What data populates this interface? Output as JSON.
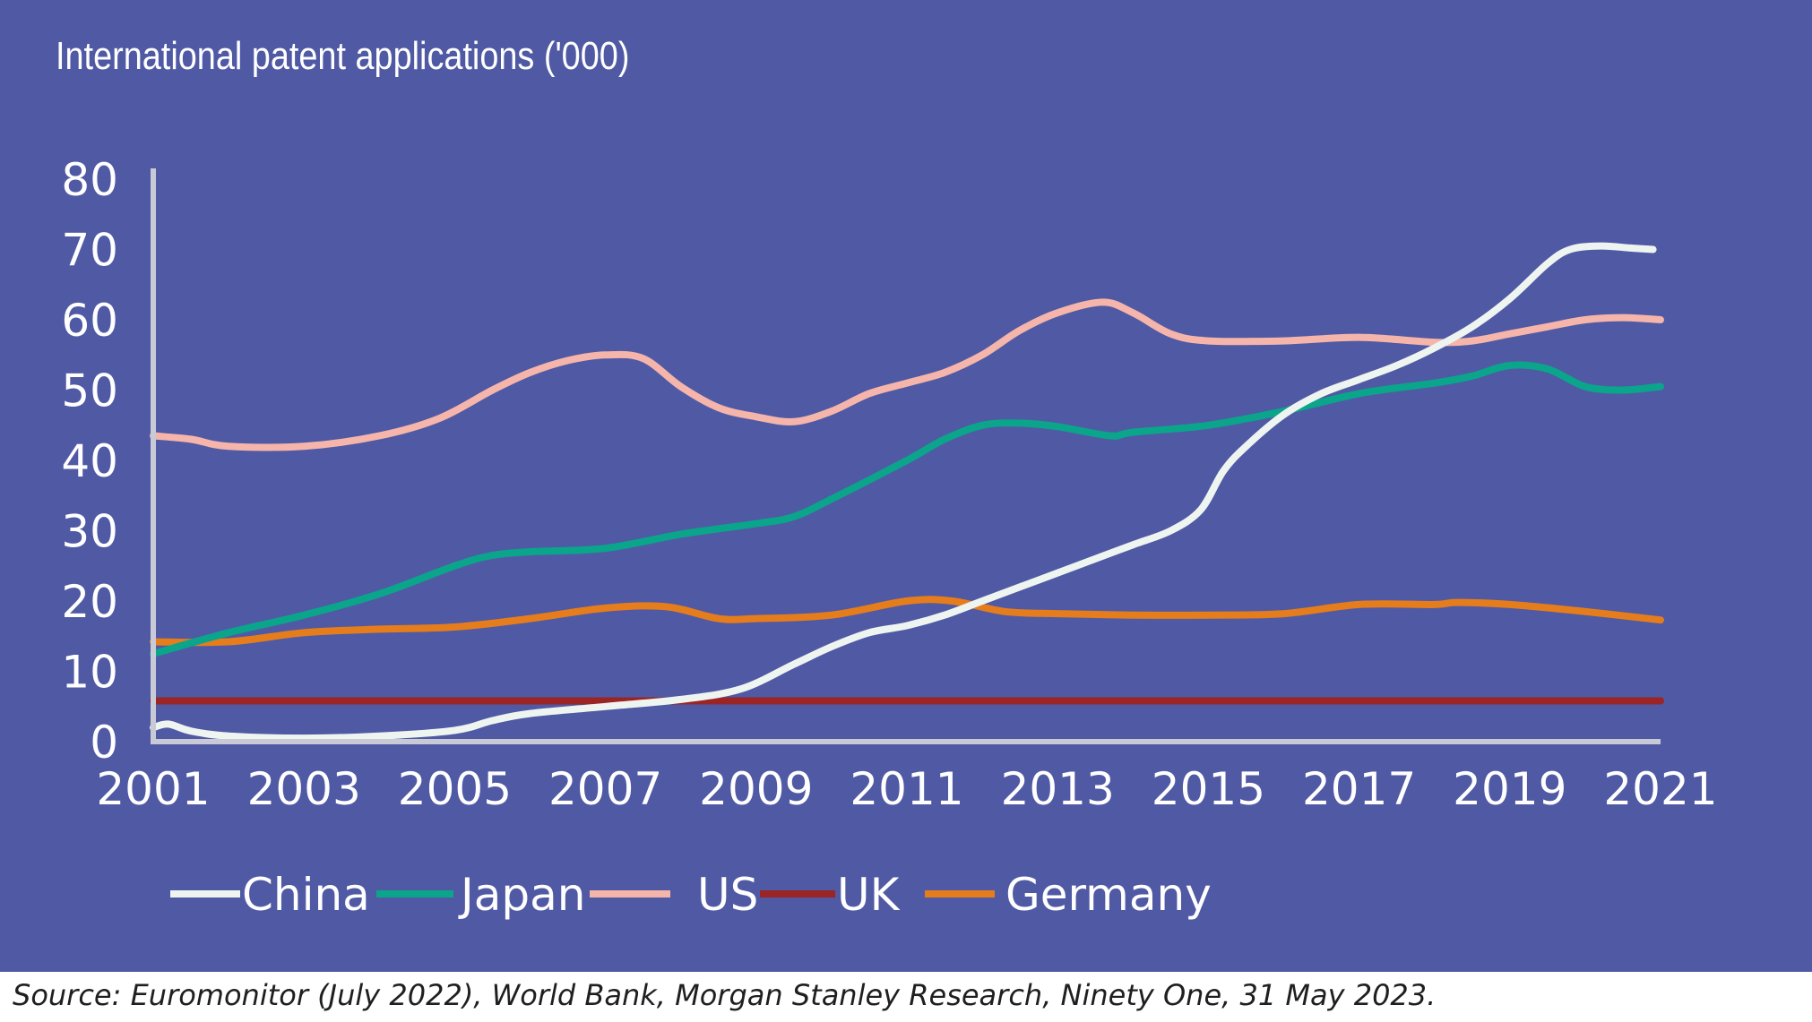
{
  "title": "International patent applications ('000)",
  "source": "Source: Euromonitor (July 2022), World Bank, Morgan Stanley Research, Ninety One, 31 May 2023.",
  "colors": {
    "background": "#5059a4",
    "axis": "#c8cad6",
    "text": "#ffffff",
    "China": "#eef5f1",
    "Japan": "#0aa58a",
    "US": "#f5b5ab",
    "UK": "#9b2525",
    "Germany": "#e57d1c"
  },
  "chart_data": {
    "type": "line",
    "title": "International patent applications ('000)",
    "xlabel": "",
    "ylabel": "",
    "xlim": [
      2001,
      2021
    ],
    "ylim": [
      0,
      80
    ],
    "x_ticks": [
      "2001",
      "2003",
      "2005",
      "2007",
      "2009",
      "2011",
      "2013",
      "2015",
      "2017",
      "2019",
      "2021"
    ],
    "y_ticks": [
      "0",
      "10",
      "20",
      "30",
      "40",
      "50",
      "60",
      "70",
      "80"
    ],
    "grid": false,
    "legend": "bottom",
    "series": [
      {
        "name": "China",
        "x": [
          2001,
          2001.2,
          2001.5,
          2002,
          2003,
          2004,
          2005,
          2005.5,
          2006,
          2007,
          2008,
          2008.8,
          2009.5,
          2010,
          2010.5,
          2011,
          2011.5,
          2012,
          2012.5,
          2013,
          2013.5,
          2014,
          2014.5,
          2014.9,
          2015.2,
          2015.5,
          2016,
          2016.5,
          2017,
          2017.5,
          2018,
          2018.5,
          2019,
          2019.5,
          2019.8,
          2020.2,
          2020.6,
          2020.9
        ],
        "y": [
          2,
          2.5,
          1.5,
          0.8,
          0.5,
          0.8,
          1.6,
          3,
          4,
          5,
          6,
          7.5,
          11,
          13.5,
          15.5,
          16.5,
          18,
          20,
          22,
          24,
          26,
          28,
          30,
          33,
          38.5,
          42,
          46.5,
          49.5,
          51.5,
          53.5,
          56,
          59,
          63,
          68,
          70,
          70.5,
          70.2,
          70
        ]
      },
      {
        "name": "Japan",
        "x": [
          2001,
          2002,
          2003,
          2004,
          2005,
          2005.5,
          2006,
          2007,
          2008,
          2009,
          2009.5,
          2010,
          2011,
          2011.5,
          2012,
          2012.5,
          2013,
          2013.7,
          2014,
          2015,
          2016,
          2017,
          2018,
          2018.5,
          2019,
          2019.5,
          2020,
          2020.5,
          2021
        ],
        "y": [
          12.5,
          15.5,
          18,
          21,
          25,
          26.5,
          27,
          27.5,
          29.5,
          31,
          32,
          34.5,
          40,
          43,
          45,
          45.3,
          44.8,
          43.5,
          44,
          45,
          47,
          49.5,
          51,
          52,
          53.5,
          53,
          50.5,
          50,
          50.5
        ]
      },
      {
        "name": "US",
        "x": [
          2001,
          2001.5,
          2002,
          2003,
          2004,
          2004.8,
          2005.5,
          2006,
          2006.5,
          2007,
          2007.5,
          2008,
          2008.5,
          2009,
          2009.5,
          2010,
          2010.5,
          2011,
          2011.5,
          2012,
          2012.5,
          2013,
          2013.6,
          2014,
          2014.5,
          2015,
          2016,
          2017,
          2018,
          2018.5,
          2019,
          2019.5,
          2020,
          2020.5,
          2021
        ],
        "y": [
          43.5,
          43,
          42,
          42,
          43.5,
          46,
          50,
          52.5,
          54.2,
          55,
          54.5,
          50.5,
          47.5,
          46.2,
          45.5,
          47,
          49.5,
          51,
          52.5,
          55,
          58.5,
          61,
          62.5,
          61,
          58,
          57,
          57,
          57.5,
          56.8,
          57,
          58,
          59,
          60,
          60.3,
          60
        ]
      },
      {
        "name": "UK",
        "x": [
          2001,
          2021
        ],
        "y": [
          5.8,
          5.8
        ]
      },
      {
        "name": "Germany",
        "x": [
          2001,
          2002,
          2003,
          2004,
          2005,
          2006,
          2007,
          2007.8,
          2008.5,
          2009,
          2010,
          2011,
          2011.6,
          2012.3,
          2013,
          2014,
          2015,
          2016,
          2017,
          2018,
          2018.3,
          2019,
          2020,
          2021
        ],
        "y": [
          14.2,
          14.2,
          15.5,
          16,
          16.3,
          17.5,
          19,
          19.2,
          17.5,
          17.5,
          18,
          20,
          20,
          18.5,
          18.2,
          18,
          18,
          18.2,
          19.5,
          19.5,
          19.8,
          19.5,
          18.5,
          17.3
        ]
      }
    ]
  }
}
